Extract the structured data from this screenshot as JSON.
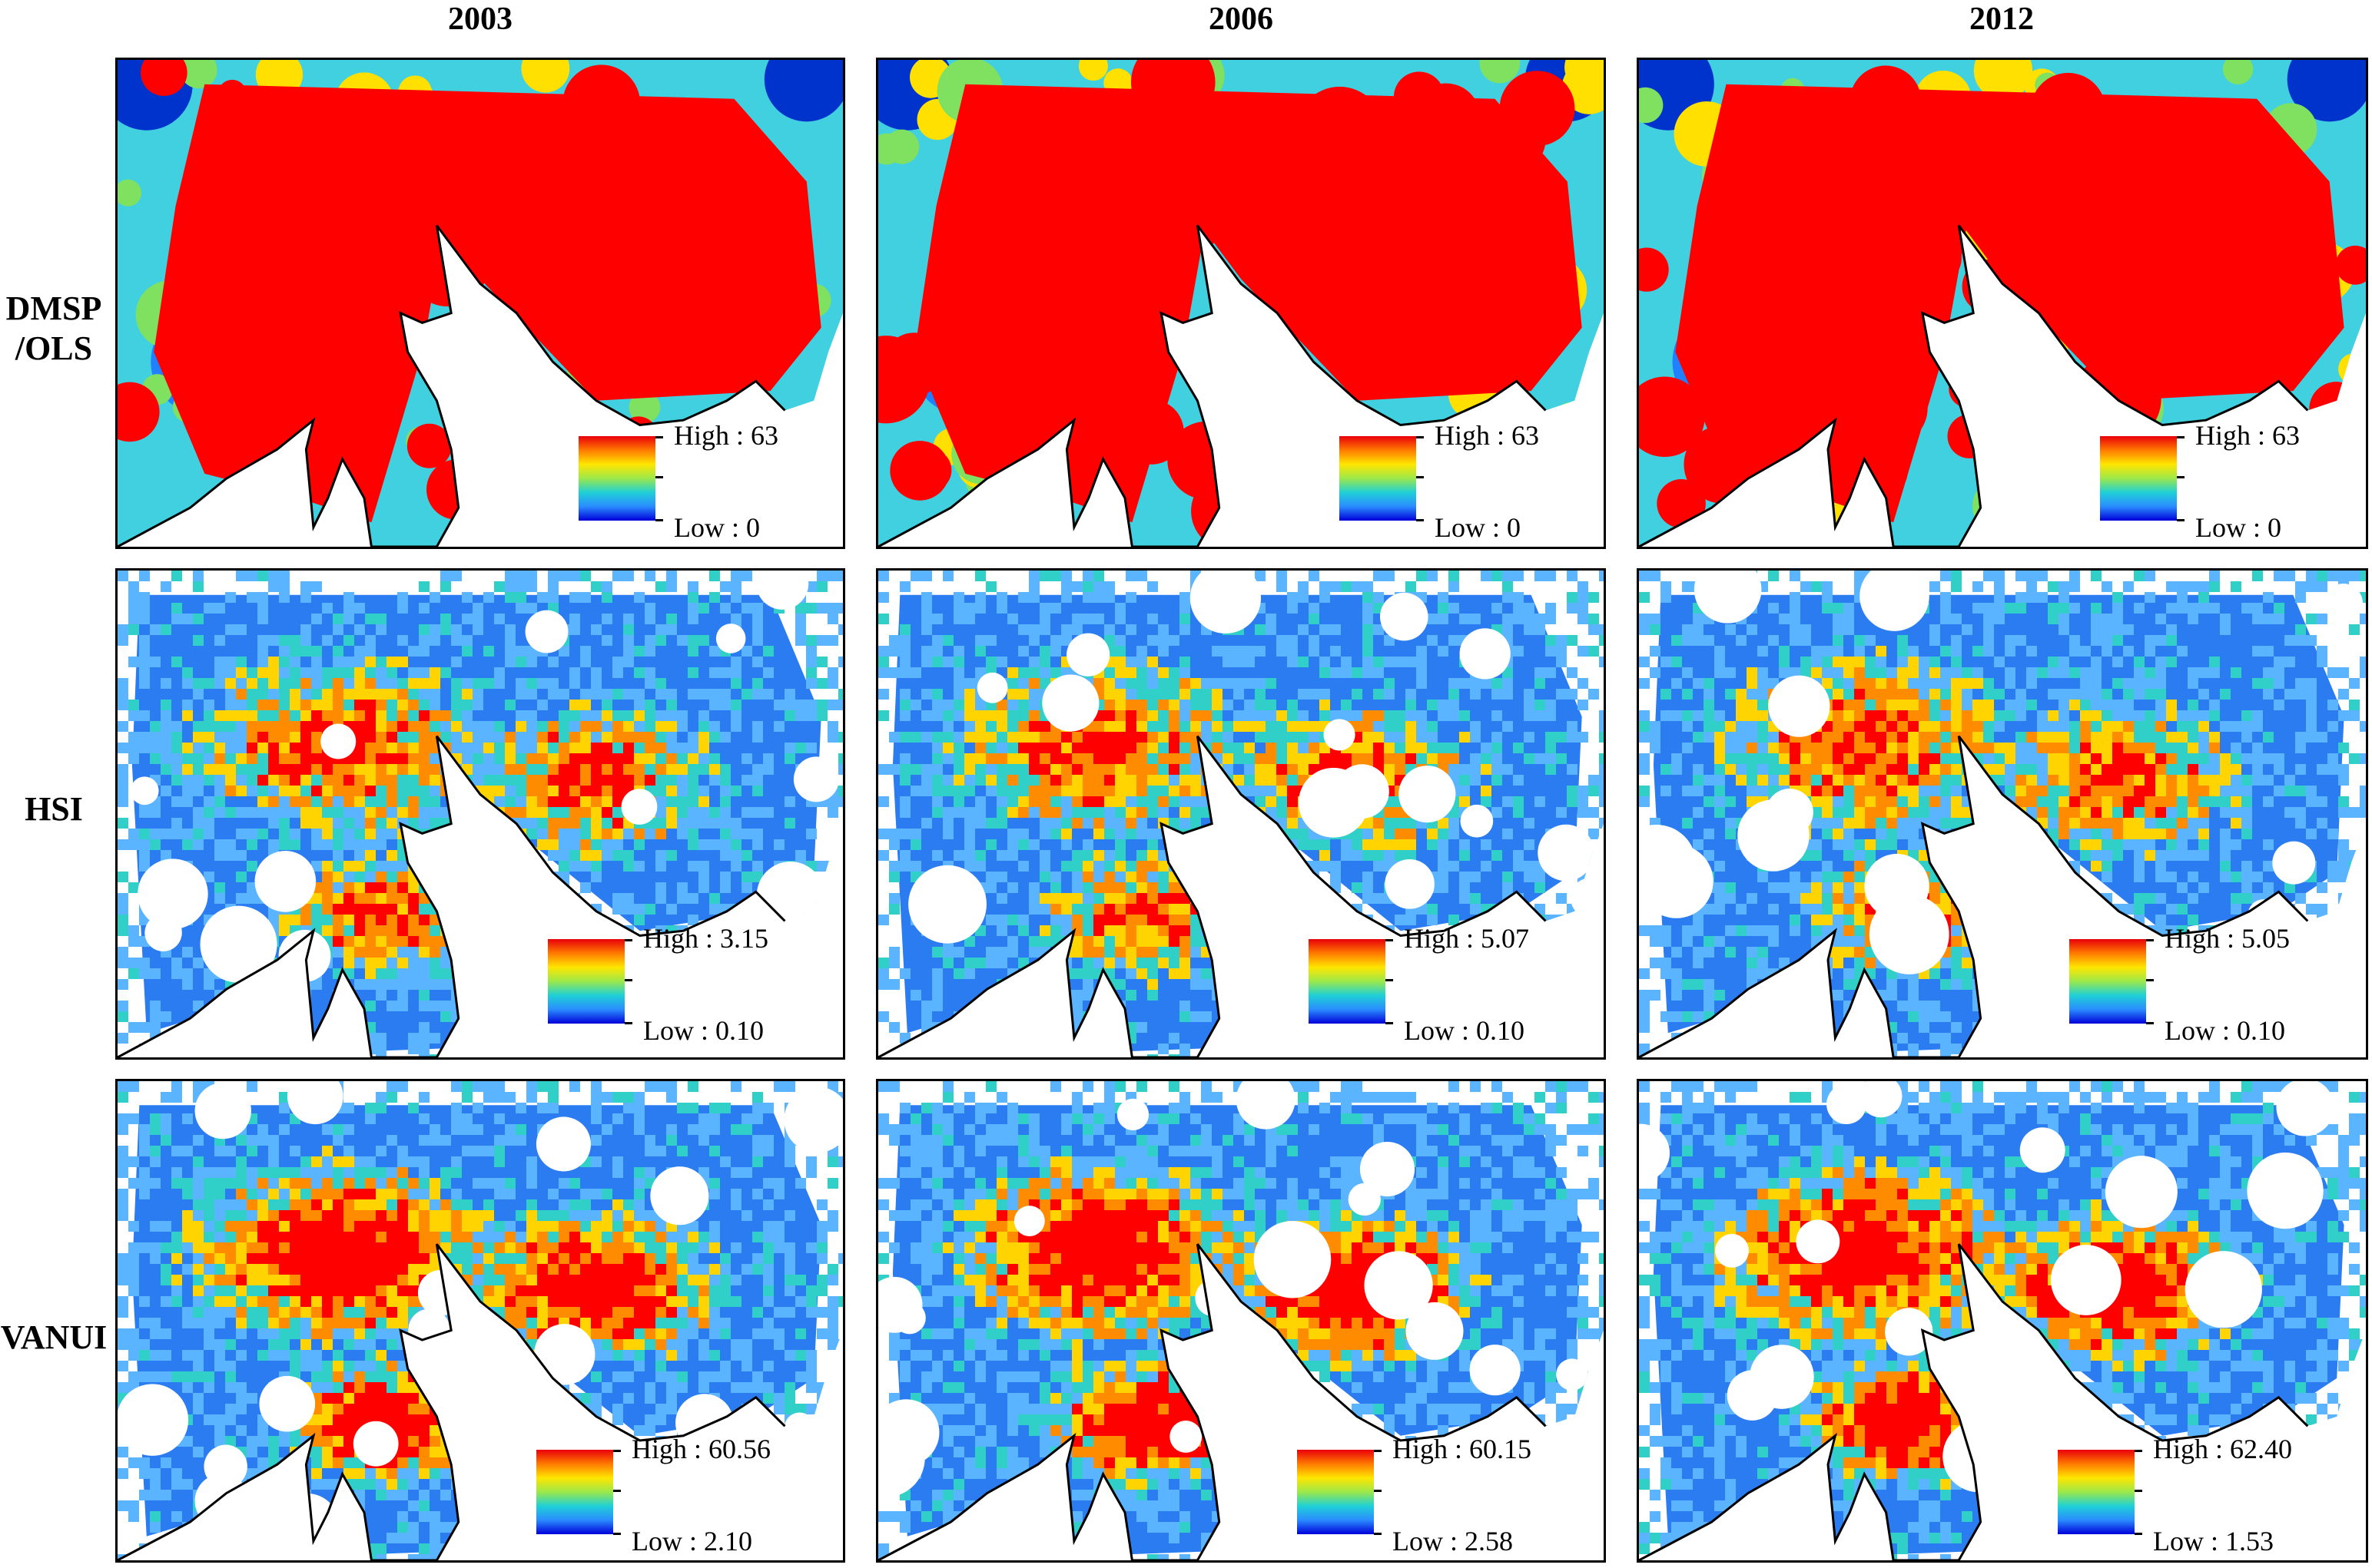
{
  "years": [
    "2003",
    "2006",
    "2012"
  ],
  "rows": [
    {
      "label_lines": [
        "DMSP",
        "/OLS"
      ]
    },
    {
      "label_lines": [
        "HSI"
      ]
    },
    {
      "label_lines": [
        "VANUI"
      ]
    }
  ],
  "panels": [
    {
      "row": 0,
      "col": 0,
      "high": "High : 63",
      "low": "Low : 0"
    },
    {
      "row": 0,
      "col": 1,
      "high": "High : 63",
      "low": "Low : 0"
    },
    {
      "row": 0,
      "col": 2,
      "high": "High : 63",
      "low": "Low : 0"
    },
    {
      "row": 1,
      "col": 0,
      "high": "High : 3.15",
      "low": "Low : 0.10"
    },
    {
      "row": 1,
      "col": 1,
      "high": "High : 5.07",
      "low": "Low : 0.10"
    },
    {
      "row": 1,
      "col": 2,
      "high": "High : 5.05",
      "low": "Low : 0.10"
    },
    {
      "row": 2,
      "col": 0,
      "high": "High : 60.56",
      "low": "Low : 2.10"
    },
    {
      "row": 2,
      "col": 1,
      "high": "High : 60.15",
      "low": "Low : 2.58"
    },
    {
      "row": 2,
      "col": 2,
      "high": "High : 62.40",
      "low": "Low : 1.53"
    }
  ],
  "colors": {
    "ramp": [
      "#e8000a",
      "#ff7a00",
      "#ffe600",
      "#9be84a",
      "#1fd0d6",
      "#2a8cff",
      "#0000d8"
    ],
    "map_high": "#ff0000",
    "map_mid": "#ffd400",
    "map_low": "#1e90ff",
    "map_min": "#0000c8"
  }
}
